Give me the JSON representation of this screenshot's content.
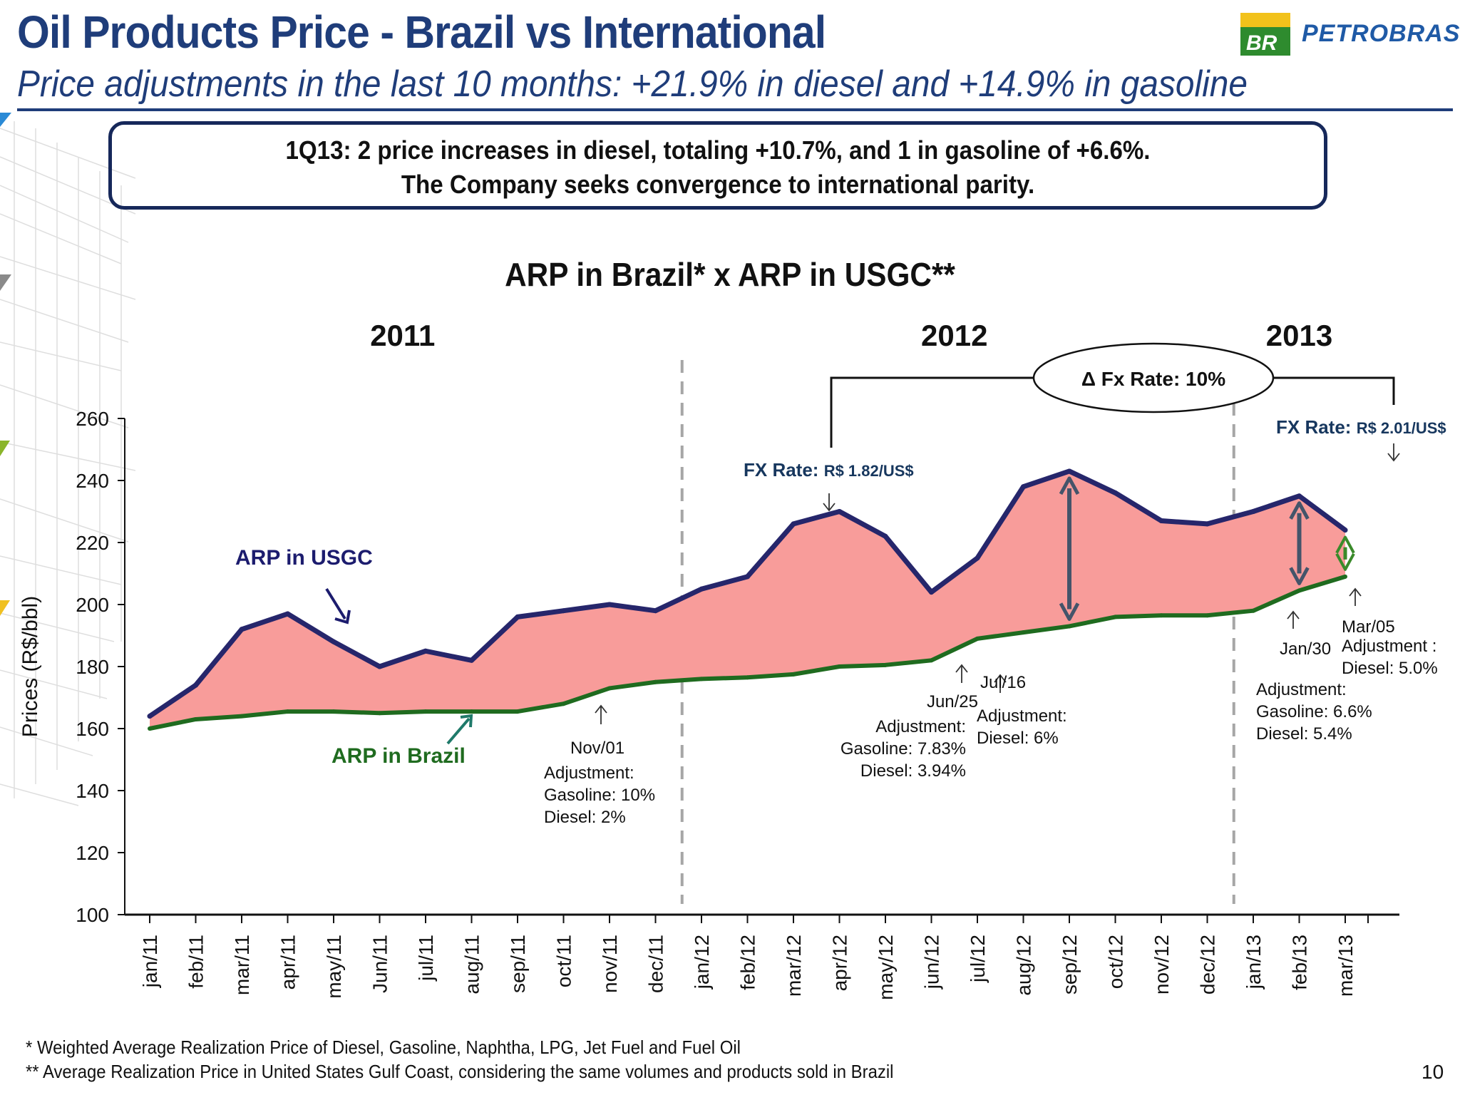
{
  "header": {
    "title": "Oil Products Price - Brazil vs International",
    "subtitle": "Price adjustments in the last 10 months: +21.9% in diesel and +14.9% in gasoline",
    "logo_text": "PETROBRAS",
    "logo_mark": "BR"
  },
  "callout": {
    "line1": "1Q13: 2 price increases in diesel, totaling +10.7%, and 1 in gasoline of +6.6%.",
    "line2": "The Company seeks convergence to international parity."
  },
  "chart_data": {
    "type": "area",
    "title": "ARP in Brazil* x ARP in USGC**",
    "ylabel": "Prices (R$/bbl)",
    "xlabel": "",
    "ylim": [
      100,
      260
    ],
    "yticks": [
      100,
      120,
      140,
      160,
      180,
      200,
      220,
      240,
      260
    ],
    "categories": [
      "jan/11",
      "feb/11",
      "mar/11",
      "apr/11",
      "may/11",
      "Jun/11",
      "jul/11",
      "aug/11",
      "sep/11",
      "oct/11",
      "nov/11",
      "dec/11",
      "jan/12",
      "feb/12",
      "mar/12",
      "apr/12",
      "may/12",
      "jun/12",
      "jul/12",
      "aug/12",
      "sep/12",
      "oct/12",
      "nov/12",
      "dec/12",
      "jan/13",
      "feb/13",
      "mar/13"
    ],
    "series": [
      {
        "name": "ARP in USGC",
        "color": "#26266b",
        "values": [
          164,
          174,
          192,
          197,
          188,
          180,
          185,
          182,
          196,
          198,
          200,
          198,
          205,
          209,
          226,
          230,
          222,
          204,
          215,
          238,
          243,
          236,
          227,
          226,
          230,
          235,
          224
        ]
      },
      {
        "name": "ARP in Brazil",
        "color": "#1f6b1f",
        "values": [
          160,
          163,
          164,
          165.5,
          165.5,
          165,
          165.5,
          165.5,
          165.5,
          168,
          173,
          175,
          176,
          176.5,
          177.5,
          180,
          180.5,
          182,
          189,
          191,
          193,
          196,
          196.5,
          196.5,
          198,
          204.5,
          209
        ]
      }
    ],
    "gap_fill_color": "#f89c9a",
    "years": [
      {
        "label": "2011",
        "category_index": 5.5
      },
      {
        "label": "2012",
        "category_index": 17.5
      },
      {
        "label": "2013",
        "category_index": 25
      }
    ],
    "year_dividers_after": [
      11,
      23
    ],
    "series_labels": {
      "usgc": "ARP in USGC",
      "brazil": "ARP in Brazil"
    },
    "fx_rates": {
      "fx_2012": {
        "prefix": "FX Rate: ",
        "value": "R$ 1.82/US$"
      },
      "fx_2013": {
        "prefix": "FX Rate: ",
        "value": "R$ 2.01/US$"
      },
      "delta": "Δ Fx Rate: 10%"
    },
    "annotations": {
      "nov01": {
        "date": "Nov/01",
        "lines": [
          "Adjustment:",
          "Gasoline: 10%",
          "Diesel: 2%"
        ]
      },
      "jun25": {
        "date": "Jun/25",
        "lines": [
          "Adjustment:",
          "Gasoline: 7.83%",
          "Diesel: 3.94%"
        ]
      },
      "jul16": {
        "date": "Jul/16",
        "lines": [
          "Adjustment:",
          "Diesel: 6%"
        ]
      },
      "jan30": {
        "date": "Jan/30",
        "lines": [
          "Adjustment:",
          "Gasoline: 6.6%",
          "Diesel: 5.4%"
        ]
      },
      "mar05": {
        "date": "Mar/05",
        "lines": [
          "Adjustment :",
          "Diesel: 5.0%"
        ]
      }
    },
    "colors": {
      "usgc_label": "#1c1c6e",
      "brazil_label": "#1f6b1f",
      "fx_label": "#17375e",
      "gap_arrow": "#44546a",
      "green_arrow": "#3a8a2a"
    }
  },
  "footnotes": {
    "line1": "* Weighted Average Realization Price of Diesel, Gasoline, Naphtha, LPG, Jet Fuel and Fuel Oil",
    "line2": "** Average Realization Price in United States Gulf Coast, considering the same volumes and products sold in Brazil"
  },
  "page_number": "10"
}
